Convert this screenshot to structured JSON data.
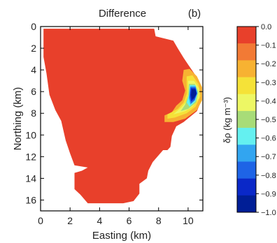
{
  "chart_data": {
    "type": "heatmap",
    "title": "Difference",
    "panel_label": "(b)",
    "xlabel": "Easting (km)",
    "ylabel": "Northing (km)",
    "xlim": [
      0,
      11
    ],
    "ylim": [
      0,
      17
    ],
    "y_inverted": true,
    "xticks": [
      "0",
      "2",
      "4",
      "6",
      "8",
      "10"
    ],
    "yticks": [
      "0",
      "2",
      "4",
      "6",
      "8",
      "10",
      "12",
      "14",
      "16"
    ],
    "colorbar": {
      "label": "δρ (kg m⁻³)",
      "tick_labels": [
        "0.0",
        "−0.1",
        "−0.2",
        "−0.3",
        "−0.4",
        "−0.5",
        "−0.6",
        "−0.7",
        "−0.8",
        "−0.9",
        "−1.0"
      ],
      "colors": [
        "#e8402b",
        "#f27a35",
        "#f7b232",
        "#f5e238",
        "#edf764",
        "#a8dc78",
        "#64f0f0",
        "#32a5f0",
        "#1e64e6",
        "#0a28c8",
        "#001e96"
      ]
    },
    "region_outline": [
      [
        0.2,
        0.2
      ],
      [
        7.7,
        0.2
      ],
      [
        7.8,
        0.9
      ],
      [
        9.0,
        1.3
      ],
      [
        9.3,
        2.0
      ],
      [
        9.7,
        2.9
      ],
      [
        10.0,
        3.5
      ],
      [
        10.5,
        4.5
      ],
      [
        10.9,
        5.5
      ],
      [
        10.9,
        6.8
      ],
      [
        10.6,
        7.8
      ],
      [
        9.7,
        8.8
      ],
      [
        9.2,
        9.2
      ],
      [
        8.9,
        10.1
      ],
      [
        8.8,
        11.1
      ],
      [
        8.6,
        11.4
      ],
      [
        8.3,
        11.4
      ],
      [
        7.6,
        12.5
      ],
      [
        7.3,
        13.3
      ],
      [
        7.2,
        14.0
      ],
      [
        6.7,
        14.5
      ],
      [
        6.7,
        15.4
      ],
      [
        6.3,
        16.1
      ],
      [
        5.6,
        16.3
      ],
      [
        3.2,
        16.3
      ],
      [
        2.7,
        15.5
      ],
      [
        2.3,
        15.0
      ],
      [
        2.3,
        13.5
      ],
      [
        2.8,
        13.3
      ],
      [
        3.2,
        13.0
      ],
      [
        2.3,
        12.8
      ],
      [
        2.0,
        11.7
      ],
      [
        1.7,
        10.5
      ],
      [
        1.4,
        8.7
      ],
      [
        1.0,
        7.7
      ],
      [
        0.6,
        6.3
      ],
      [
        0.4,
        4.3
      ],
      [
        0.2,
        2.8
      ]
    ],
    "anomaly_zones": [
      {
        "level": -0.2,
        "outline": [
          [
            9.7,
            4.0
          ],
          [
            10.1,
            3.9
          ],
          [
            10.6,
            4.6
          ],
          [
            10.95,
            5.6
          ],
          [
            10.95,
            6.8
          ],
          [
            10.6,
            7.7
          ],
          [
            9.8,
            8.5
          ],
          [
            9.0,
            8.8
          ],
          [
            8.4,
            8.8
          ],
          [
            8.4,
            8.2
          ],
          [
            8.9,
            7.9
          ],
          [
            9.2,
            7.3
          ],
          [
            9.6,
            6.8
          ],
          [
            9.8,
            5.9
          ],
          [
            9.6,
            5.0
          ]
        ]
      },
      {
        "level": -0.3,
        "outline": [
          [
            9.9,
            4.6
          ],
          [
            10.3,
            4.5
          ],
          [
            10.7,
            5.3
          ],
          [
            10.85,
            6.4
          ],
          [
            10.5,
            7.4
          ],
          [
            9.9,
            8.0
          ],
          [
            9.1,
            8.4
          ],
          [
            8.6,
            8.5
          ],
          [
            8.6,
            8.1
          ],
          [
            9.3,
            7.6
          ],
          [
            9.7,
            7.0
          ],
          [
            9.9,
            6.2
          ]
        ]
      },
      {
        "level": -0.4,
        "outline": [
          [
            10.0,
            5.0
          ],
          [
            10.4,
            5.0
          ],
          [
            10.75,
            5.7
          ],
          [
            10.75,
            6.6
          ],
          [
            10.3,
            7.4
          ],
          [
            9.8,
            7.8
          ],
          [
            9.0,
            8.1
          ],
          [
            9.5,
            7.5
          ],
          [
            9.9,
            6.9
          ],
          [
            10.0,
            6.1
          ]
        ]
      },
      {
        "level": -0.5,
        "outline": [
          [
            10.05,
            5.3
          ],
          [
            10.45,
            5.3
          ],
          [
            10.7,
            6.0
          ],
          [
            10.55,
            7.0
          ],
          [
            10.0,
            7.6
          ],
          [
            9.5,
            7.8
          ],
          [
            9.8,
            7.2
          ],
          [
            10.0,
            6.4
          ]
        ]
      },
      {
        "level": -0.6,
        "outline": [
          [
            10.1,
            5.4
          ],
          [
            10.5,
            5.4
          ],
          [
            10.65,
            6.1
          ],
          [
            10.5,
            6.9
          ],
          [
            10.1,
            7.4
          ],
          [
            9.9,
            7.0
          ],
          [
            10.05,
            6.3
          ]
        ]
      },
      {
        "level": -0.7,
        "outline": [
          [
            10.15,
            5.5
          ],
          [
            10.5,
            5.5
          ],
          [
            10.62,
            6.1
          ],
          [
            10.45,
            6.8
          ],
          [
            10.15,
            7.2
          ],
          [
            10.05,
            6.6
          ],
          [
            10.1,
            6.0
          ]
        ]
      },
      {
        "level": -0.8,
        "outline": [
          [
            10.15,
            5.6
          ],
          [
            10.5,
            5.6
          ],
          [
            10.6,
            6.2
          ],
          [
            10.45,
            6.8
          ],
          [
            10.2,
            7.1
          ],
          [
            10.1,
            6.5
          ]
        ]
      },
      {
        "level": -0.9,
        "outline": [
          [
            10.2,
            5.7
          ],
          [
            10.5,
            5.7
          ],
          [
            10.6,
            6.2
          ],
          [
            10.4,
            6.7
          ],
          [
            10.2,
            6.9
          ],
          [
            10.15,
            6.3
          ]
        ]
      },
      {
        "level": -1.0,
        "outline": [
          [
            10.25,
            5.8
          ],
          [
            10.5,
            5.8
          ],
          [
            10.55,
            6.2
          ],
          [
            10.4,
            6.6
          ],
          [
            10.25,
            6.7
          ],
          [
            10.2,
            6.3
          ]
        ]
      }
    ]
  }
}
